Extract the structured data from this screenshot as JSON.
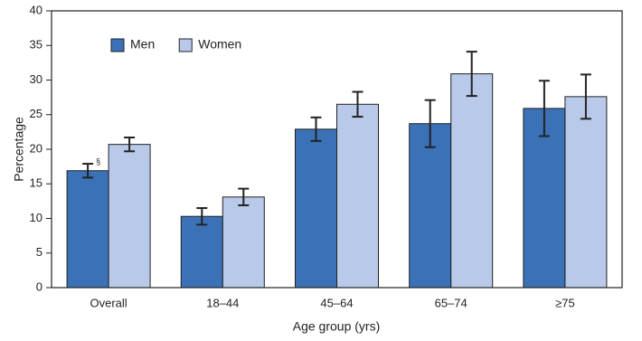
{
  "chart_data": {
    "type": "bar",
    "x_label": "Age group (yrs)",
    "y_label": "Percentage",
    "categories": [
      "Overall",
      "18–44",
      "45–64",
      "65–74",
      "≥75"
    ],
    "series": [
      {
        "name": "Men",
        "color": "#3b71b6",
        "values": [
          16.9,
          10.3,
          22.9,
          23.7,
          25.9
        ],
        "errors": [
          1.0,
          1.2,
          1.7,
          3.4,
          4.0
        ]
      },
      {
        "name": "Women",
        "color": "#b9c9e9",
        "values": [
          20.7,
          13.1,
          26.5,
          30.9,
          27.6
        ],
        "errors": [
          1.0,
          1.2,
          1.8,
          3.2,
          3.2
        ]
      }
    ],
    "annotation": "§",
    "ylim": [
      0,
      40
    ],
    "yticks": [
      0,
      5,
      10,
      15,
      20,
      25,
      30,
      35,
      40
    ],
    "grid": false,
    "legend": "upper left"
  }
}
